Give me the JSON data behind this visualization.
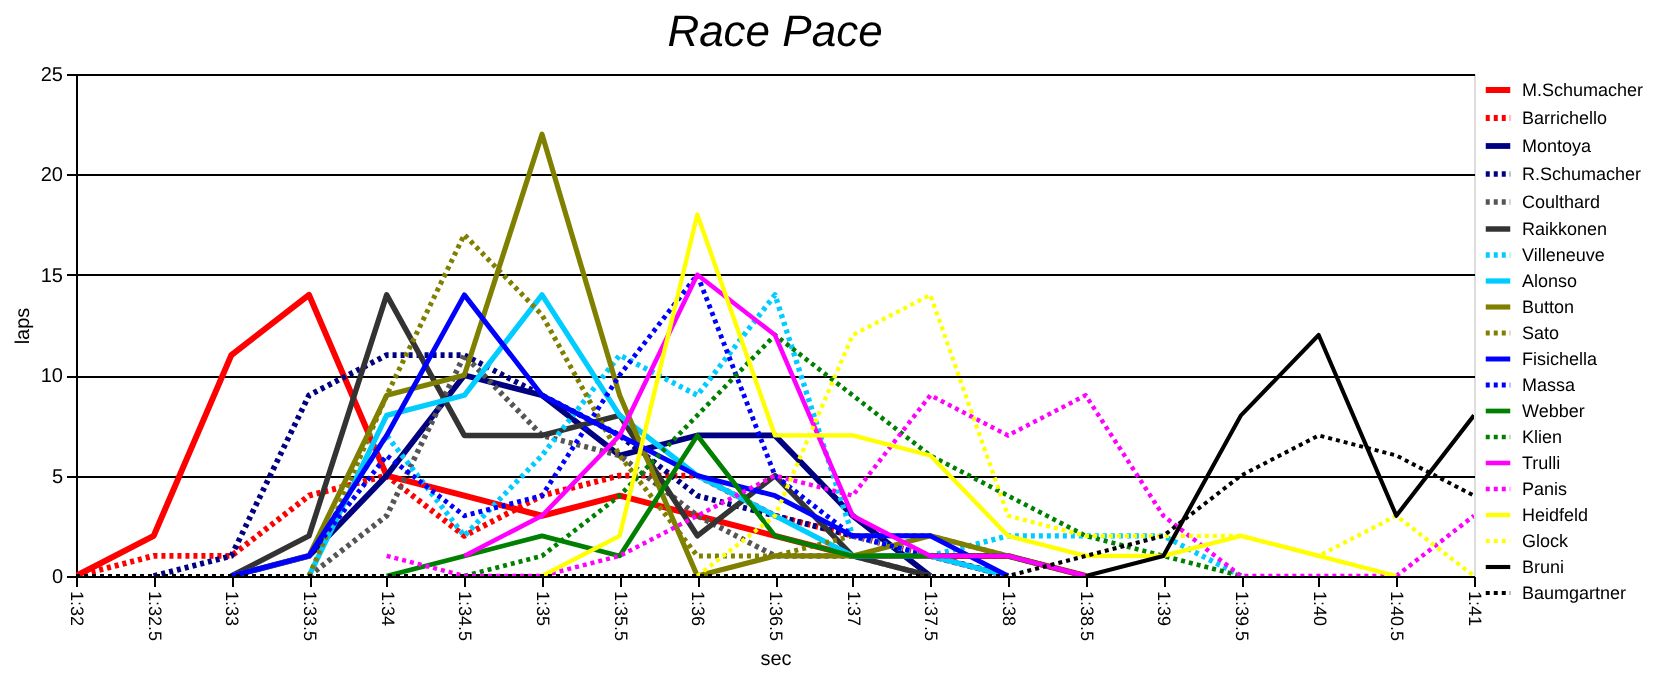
{
  "chart_data": {
    "type": "line",
    "title": "Race Pace",
    "xlabel": "sec",
    "ylabel": "laps",
    "categories": [
      "1:32",
      "1:32.5",
      "1:33",
      "1:33.5",
      "1:34",
      "1:34.5",
      "1:35",
      "1:35.5",
      "1:36",
      "1:36.5",
      "1:37",
      "1:37.5",
      "1:38",
      "1:38.5",
      "1:39",
      "1:39.5",
      "1:40",
      "1:40.5",
      "1:41"
    ],
    "ylim": [
      0,
      25
    ],
    "yticks": [
      0,
      5,
      10,
      15,
      20,
      25
    ],
    "grid": "y",
    "legend": "right",
    "marker": "none",
    "series": [
      {
        "name": "M.Schumacher",
        "color": "#ff0000",
        "line_style": "solid",
        "values": [
          0,
          2,
          11,
          14,
          5,
          4,
          3,
          4,
          3,
          2,
          1,
          1,
          1,
          0,
          null,
          null,
          null,
          null,
          null
        ]
      },
      {
        "name": "Barrichello",
        "color": "#ff0000",
        "line_style": "dotted",
        "values": [
          0,
          1,
          1,
          4,
          5,
          2,
          4,
          5,
          5,
          3,
          2,
          1,
          0,
          null,
          null,
          null,
          null,
          null,
          null
        ]
      },
      {
        "name": "Montoya",
        "color": "#000080",
        "line_style": "solid",
        "values": [
          null,
          null,
          0,
          1,
          5,
          10,
          9,
          6,
          7,
          7,
          3,
          0,
          null,
          null,
          null,
          null,
          null,
          null,
          null
        ]
      },
      {
        "name": "R.Schumacher",
        "color": "#000080",
        "line_style": "dotted",
        "values": [
          null,
          0,
          1,
          9,
          11,
          11,
          9,
          7,
          4,
          3,
          2,
          1,
          0,
          null,
          null,
          null,
          null,
          null,
          null
        ]
      },
      {
        "name": "Coulthard",
        "color": "#555555",
        "line_style": "dotted",
        "values": [
          null,
          null,
          null,
          0,
          3,
          11,
          7,
          6,
          3,
          1,
          1,
          0,
          null,
          null,
          null,
          null,
          null,
          null,
          null
        ]
      },
      {
        "name": "Raikkonen",
        "color": "#333333",
        "line_style": "solid",
        "values": [
          null,
          null,
          0,
          2,
          14,
          7,
          7,
          8,
          2,
          5,
          1,
          0,
          null,
          null,
          null,
          null,
          null,
          null,
          null
        ]
      },
      {
        "name": "Villeneuve",
        "color": "#00ccff",
        "line_style": "dotted",
        "values": [
          null,
          null,
          0,
          1,
          7,
          2,
          6,
          11,
          9,
          14,
          2,
          1,
          2,
          2,
          2,
          0,
          null,
          null,
          null
        ]
      },
      {
        "name": "Alonso",
        "color": "#00ccff",
        "line_style": "solid",
        "values": [
          null,
          null,
          null,
          0,
          8,
          9,
          14,
          8,
          5,
          3,
          1,
          1,
          0,
          null,
          null,
          null,
          null,
          null,
          null
        ]
      },
      {
        "name": "Button",
        "color": "#808000",
        "line_style": "solid",
        "values": [
          null,
          null,
          0,
          1,
          9,
          10,
          22,
          9,
          0,
          1,
          1,
          2,
          1,
          0,
          null,
          null,
          null,
          null,
          null
        ]
      },
      {
        "name": "Sato",
        "color": "#808000",
        "line_style": "dotted",
        "values": [
          null,
          null,
          null,
          0,
          9,
          17,
          13,
          6,
          1,
          1,
          2,
          2,
          1,
          0,
          null,
          null,
          null,
          null,
          null
        ]
      },
      {
        "name": "Fisichella",
        "color": "#0000ff",
        "line_style": "solid",
        "values": [
          null,
          null,
          0,
          1,
          7,
          14,
          9,
          7,
          5,
          4,
          2,
          2,
          0,
          null,
          null,
          null,
          null,
          null,
          null
        ]
      },
      {
        "name": "Massa",
        "color": "#0000ff",
        "line_style": "dotted",
        "values": [
          null,
          null,
          0,
          1,
          6,
          3,
          4,
          10,
          15,
          5,
          2,
          1,
          1,
          0,
          null,
          null,
          null,
          null,
          null
        ]
      },
      {
        "name": "Webber",
        "color": "#008000",
        "line_style": "solid",
        "values": [
          null,
          null,
          null,
          null,
          0,
          1,
          2,
          1,
          7,
          2,
          1,
          1,
          1,
          0,
          null,
          null,
          null,
          null,
          null
        ]
      },
      {
        "name": "Klien",
        "color": "#008000",
        "line_style": "dotted",
        "values": [
          null,
          null,
          null,
          null,
          null,
          0,
          1,
          4,
          8,
          12,
          9,
          6,
          4,
          2,
          1,
          0,
          null,
          null,
          null
        ]
      },
      {
        "name": "Trulli",
        "color": "#ff00ff",
        "line_style": "solid",
        "values": [
          null,
          null,
          null,
          null,
          null,
          1,
          3,
          7,
          15,
          12,
          3,
          1,
          1,
          0,
          null,
          null,
          null,
          null,
          null
        ]
      },
      {
        "name": "Panis",
        "color": "#ff00ff",
        "line_style": "dotted",
        "values": [
          null,
          null,
          null,
          null,
          1,
          0,
          0,
          1,
          3,
          5,
          4,
          9,
          7,
          9,
          3,
          0,
          0,
          0,
          3
        ]
      },
      {
        "name": "Heidfeld",
        "color": "#ffff00",
        "line_style": "solid",
        "values": [
          null,
          null,
          null,
          null,
          null,
          null,
          0,
          2,
          18,
          7,
          7,
          6,
          2,
          1,
          1,
          2,
          1,
          0,
          null
        ]
      },
      {
        "name": "Glock",
        "color": "#ffff00",
        "line_style": "dotted",
        "values": [
          null,
          null,
          null,
          null,
          null,
          null,
          null,
          null,
          0,
          3,
          12,
          14,
          3,
          2,
          2,
          2,
          1,
          3,
          0
        ]
      },
      {
        "name": "Bruni",
        "color": "#000000",
        "line_style": "solid",
        "values": [
          null,
          null,
          null,
          null,
          null,
          null,
          null,
          null,
          null,
          null,
          null,
          null,
          null,
          0,
          1,
          8,
          12,
          3,
          8
        ]
      },
      {
        "name": "Baumgartner",
        "color": "#000000",
        "line_style": "dotted",
        "values": [
          0,
          0,
          0,
          0,
          0,
          0,
          0,
          0,
          0,
          0,
          0,
          0,
          0,
          1,
          2,
          5,
          7,
          6,
          4
        ]
      }
    ]
  }
}
